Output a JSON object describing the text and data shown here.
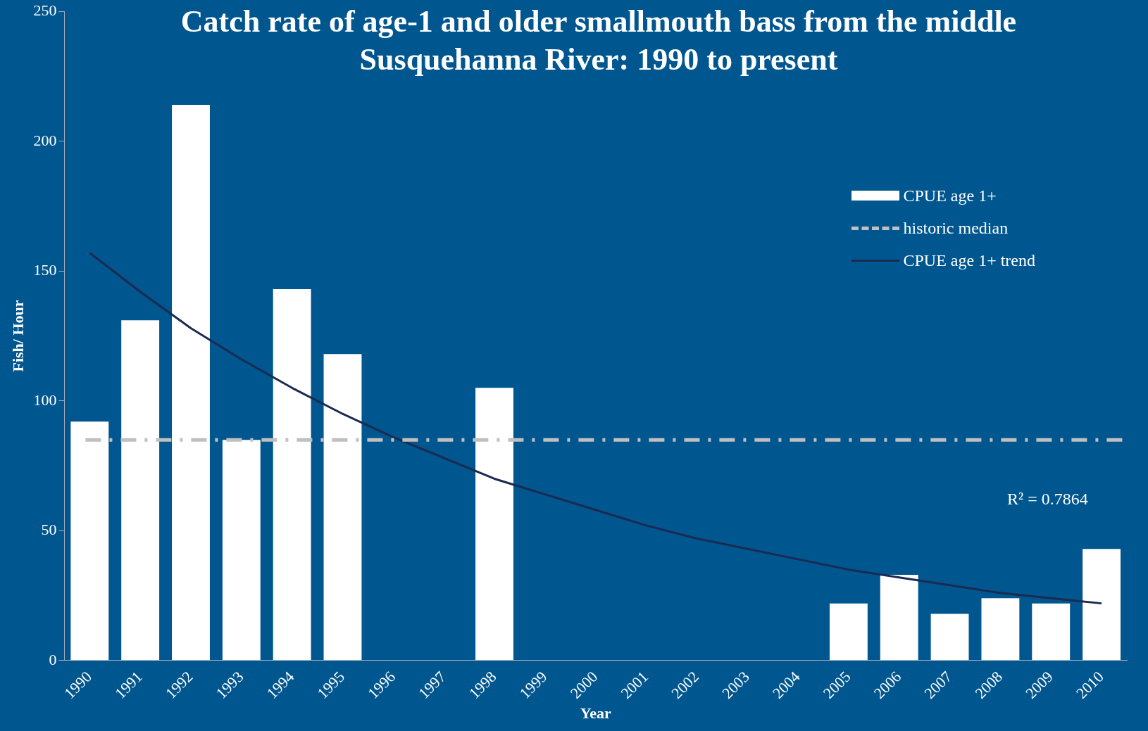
{
  "chart_data": {
    "type": "bar",
    "title": "Catch rate of age-1 and older smallmouth bass from the middle Susquehanna River: 1990 to present",
    "xlabel": "Year",
    "ylabel": "Fish/ Hour",
    "categories": [
      "1990",
      "1991",
      "1992",
      "1993",
      "1994",
      "1995",
      "1996",
      "1997",
      "1998",
      "1999",
      "2000",
      "2001",
      "2002",
      "2003",
      "2004",
      "2005",
      "2006",
      "2007",
      "2008",
      "2009",
      "2010"
    ],
    "series": [
      {
        "name": "CPUE age 1+",
        "color": "#ffffff",
        "values": [
          92,
          131,
          214,
          85,
          143,
          118,
          null,
          null,
          105,
          null,
          null,
          null,
          null,
          null,
          null,
          22,
          33,
          18,
          24,
          22,
          43
        ]
      },
      {
        "name": "CPUE age 1+ trend",
        "type": "line",
        "color": "#1a2a50",
        "values": [
          157,
          142,
          128,
          116,
          105,
          95,
          86,
          78,
          70,
          64,
          58,
          52,
          47,
          43,
          39,
          35,
          32,
          29,
          26,
          24,
          22
        ]
      }
    ],
    "ref_lines": [
      {
        "axis": "y",
        "value": 85,
        "label": "historic median",
        "color": "#c0c0c0",
        "line_style": "dashed"
      }
    ],
    "annotations": [
      "R² = 0.7864"
    ],
    "ylim": [
      0,
      250
    ],
    "yticks": [
      0,
      50,
      100,
      150,
      200,
      250
    ],
    "grid": false,
    "legend": "top right",
    "marker": "none"
  }
}
